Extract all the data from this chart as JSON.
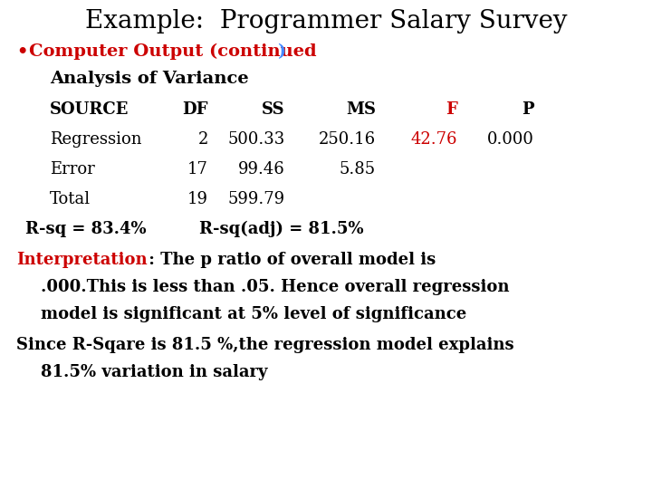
{
  "title": "Example:  Programmer Salary Survey",
  "title_color": "#000000",
  "title_fontsize": 20,
  "background_color": "#ffffff",
  "bullet_color": "#cc0000",
  "bullet_paren_color": "#4488ff",
  "anova_header": "Analysis of Variance",
  "col_headers": [
    "SOURCE",
    "DF",
    "SS",
    "MS",
    "F",
    "P"
  ],
  "col_header_F_color": "#cc0000",
  "rows": [
    [
      "Regression",
      "2",
      "500.33",
      "250.16",
      "42.76",
      "0.000"
    ],
    [
      "Error",
      "17",
      "99.46",
      "5.85",
      "",
      ""
    ],
    [
      "Total",
      "19",
      "599.79",
      "",
      "",
      ""
    ]
  ],
  "row_F_color": "#cc0000",
  "body_color": "#000000",
  "font_serif": "DejaVu Serif",
  "fontsize_main": 13,
  "fontsize_title": 20,
  "fontsize_bullet": 14,
  "fontsize_anova": 14,
  "fontsize_table": 13,
  "fontsize_rsq": 13,
  "fontsize_interp": 13
}
